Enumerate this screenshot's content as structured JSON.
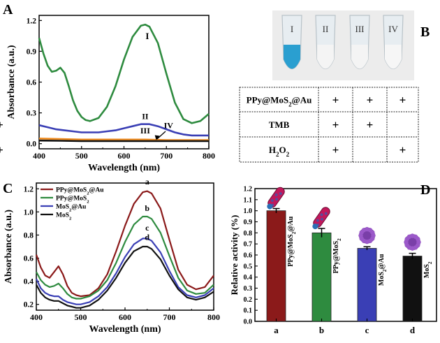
{
  "panel_letters": {
    "A": "A",
    "B": "B",
    "C": "C",
    "D": "D"
  },
  "colors": {
    "green": "#2e8b3f",
    "blue": "#3a3fb5",
    "orange": "#f08a1c",
    "black": "#111111",
    "darkred": "#8b1a1a",
    "tube_blue": "#2a9fd0"
  },
  "panelB": {
    "tube_labels": [
      "I",
      "II",
      "III",
      "IV"
    ],
    "table": {
      "rows": [
        {
          "label_main": "PPy@MoS",
          "label_sub": "2",
          "label_tail": "@Au",
          "marks": [
            "+",
            "+",
            "+",
            ""
          ]
        },
        {
          "label_main": "TMB",
          "label_sub": "",
          "label_tail": "",
          "marks": [
            "+",
            "+",
            "",
            "+"
          ]
        },
        {
          "label_main": "H",
          "label_sub": "2",
          "label_tail": "O",
          "label_sub2": "2",
          "marks": [
            "+",
            "",
            "+",
            "+"
          ]
        }
      ]
    }
  },
  "panelD_bar_labels": [
    {
      "main": "PPy@MoS",
      "sub": "2",
      "tail": "@Au"
    },
    {
      "main": "PPy@MoS",
      "sub": "2",
      "tail": ""
    },
    {
      "main": "MoS",
      "sub": "2",
      "tail": "@Au"
    },
    {
      "main": "MoS",
      "sub": "2",
      "tail": ""
    }
  ],
  "chart_data": [
    {
      "panel": "A",
      "type": "line",
      "xlabel": "Wavelength (nm)",
      "ylabel": "Absorbance (a.u.)",
      "xlim": [
        400,
        800
      ],
      "ylim": [
        -0.05,
        1.25
      ],
      "xticks": [
        400,
        500,
        600,
        700,
        800
      ],
      "yticks": [
        0.0,
        0.3,
        0.6,
        0.9,
        1.2
      ],
      "ytick_labels": [
        "0.0",
        "0.3",
        "0.6",
        "0.9",
        "1.2"
      ],
      "annotations": [
        "I",
        "II",
        "III",
        "IV"
      ],
      "series": [
        {
          "label": "I",
          "color": "#2e8b3f",
          "x": [
            400,
            410,
            420,
            430,
            440,
            450,
            460,
            470,
            480,
            490,
            500,
            510,
            520,
            540,
            560,
            580,
            600,
            620,
            640,
            650,
            660,
            680,
            700,
            720,
            740,
            760,
            780,
            800
          ],
          "y": [
            1.03,
            0.88,
            0.76,
            0.7,
            0.71,
            0.74,
            0.69,
            0.56,
            0.42,
            0.32,
            0.26,
            0.23,
            0.22,
            0.25,
            0.36,
            0.56,
            0.82,
            1.04,
            1.15,
            1.16,
            1.14,
            0.98,
            0.68,
            0.4,
            0.24,
            0.2,
            0.22,
            0.29
          ]
        },
        {
          "label": "II",
          "color": "#3a3fb5",
          "x": [
            400,
            420,
            440,
            460,
            480,
            500,
            520,
            540,
            560,
            580,
            600,
            620,
            640,
            650,
            660,
            680,
            700,
            720,
            740,
            760,
            780,
            800
          ],
          "y": [
            0.18,
            0.16,
            0.14,
            0.13,
            0.12,
            0.11,
            0.11,
            0.11,
            0.12,
            0.13,
            0.15,
            0.17,
            0.19,
            0.19,
            0.19,
            0.17,
            0.14,
            0.11,
            0.09,
            0.08,
            0.08,
            0.08
          ]
        },
        {
          "label": "III",
          "color": "#f08a1c",
          "x": [
            400,
            450,
            500,
            550,
            600,
            650,
            700,
            750,
            800
          ],
          "y": [
            0.05,
            0.045,
            0.04,
            0.04,
            0.04,
            0.04,
            0.035,
            0.035,
            0.035
          ]
        },
        {
          "label": "IV",
          "color": "#111111",
          "x": [
            400,
            450,
            500,
            550,
            600,
            650,
            700,
            750,
            800
          ],
          "y": [
            0.03,
            0.028,
            0.025,
            0.025,
            0.025,
            0.025,
            0.025,
            0.025,
            0.025
          ]
        }
      ]
    },
    {
      "panel": "C",
      "type": "line",
      "xlabel": "Wavelength (nm)",
      "ylabel": "Absorbance (a.u.)",
      "xlim": [
        400,
        800
      ],
      "ylim": [
        0.15,
        1.25
      ],
      "xticks": [
        400,
        500,
        600,
        700,
        800
      ],
      "yticks": [
        0.2,
        0.4,
        0.6,
        0.8,
        1.0,
        1.2
      ],
      "ytick_labels": [
        "0.2",
        "0.4",
        "0.6",
        "0.8",
        "1.0",
        "1.2"
      ],
      "annotations": [
        "a",
        "b",
        "c",
        "d"
      ],
      "series": [
        {
          "name_main": "PPy@MoS",
          "name_sub": "2",
          "name_tail": "@Au",
          "color": "#8b1a1a",
          "x": [
            400,
            410,
            420,
            430,
            440,
            450,
            460,
            470,
            480,
            490,
            500,
            520,
            540,
            560,
            580,
            600,
            620,
            640,
            650,
            660,
            680,
            700,
            720,
            740,
            760,
            780,
            800
          ],
          "y": [
            0.63,
            0.52,
            0.45,
            0.43,
            0.48,
            0.53,
            0.46,
            0.36,
            0.3,
            0.28,
            0.27,
            0.28,
            0.34,
            0.46,
            0.66,
            0.88,
            1.07,
            1.17,
            1.18,
            1.16,
            1.03,
            0.76,
            0.5,
            0.37,
            0.33,
            0.35,
            0.45
          ]
        },
        {
          "name_main": "PPy@MoS",
          "name_sub": "2",
          "name_tail": "",
          "color": "#2e8b3f",
          "x": [
            400,
            410,
            420,
            430,
            440,
            450,
            460,
            470,
            480,
            490,
            500,
            520,
            540,
            560,
            580,
            600,
            620,
            640,
            650,
            660,
            680,
            700,
            720,
            740,
            760,
            780,
            800
          ],
          "y": [
            0.48,
            0.41,
            0.37,
            0.35,
            0.36,
            0.38,
            0.34,
            0.29,
            0.26,
            0.25,
            0.25,
            0.27,
            0.32,
            0.41,
            0.56,
            0.74,
            0.89,
            0.96,
            0.96,
            0.94,
            0.82,
            0.62,
            0.43,
            0.32,
            0.29,
            0.3,
            0.37
          ]
        },
        {
          "name_main": "MoS",
          "name_sub": "2",
          "name_tail": "@Au",
          "color": "#3a3fb5",
          "x": [
            400,
            410,
            420,
            430,
            440,
            450,
            460,
            470,
            480,
            490,
            500,
            520,
            540,
            560,
            580,
            600,
            620,
            640,
            650,
            660,
            680,
            700,
            720,
            740,
            760,
            780,
            800
          ],
          "y": [
            0.42,
            0.34,
            0.3,
            0.28,
            0.27,
            0.27,
            0.24,
            0.22,
            0.21,
            0.2,
            0.2,
            0.22,
            0.27,
            0.35,
            0.47,
            0.61,
            0.72,
            0.77,
            0.77,
            0.75,
            0.65,
            0.49,
            0.35,
            0.28,
            0.26,
            0.28,
            0.34
          ]
        },
        {
          "name_main": "MoS",
          "name_sub": "2",
          "name_tail": "",
          "color": "#111111",
          "x": [
            400,
            410,
            420,
            430,
            440,
            450,
            460,
            470,
            480,
            490,
            500,
            520,
            540,
            560,
            580,
            600,
            620,
            640,
            650,
            660,
            680,
            700,
            720,
            740,
            760,
            780,
            800
          ],
          "y": [
            0.37,
            0.3,
            0.26,
            0.24,
            0.23,
            0.23,
            0.21,
            0.19,
            0.18,
            0.17,
            0.17,
            0.19,
            0.24,
            0.32,
            0.43,
            0.56,
            0.66,
            0.7,
            0.7,
            0.68,
            0.59,
            0.45,
            0.33,
            0.26,
            0.24,
            0.26,
            0.31
          ]
        }
      ]
    },
    {
      "panel": "D",
      "type": "bar",
      "ylabel": "Relative activity (%)",
      "ylim": [
        0.0,
        1.2
      ],
      "yticks": [
        0.0,
        0.1,
        0.2,
        0.3,
        0.4,
        0.5,
        0.6,
        0.7,
        0.8,
        0.9,
        1.0,
        1.1,
        1.2
      ],
      "ytick_labels": [
        "0.0",
        "0.1",
        "0.2",
        "0.3",
        "0.4",
        "0.5",
        "0.6",
        "0.7",
        "0.8",
        "0.9",
        "1.0",
        "1.1",
        "1.2"
      ],
      "categories": [
        "a",
        "b",
        "c",
        "d"
      ],
      "values": [
        1.0,
        0.8,
        0.66,
        0.59
      ],
      "errors": [
        0.02,
        0.04,
        0.015,
        0.025
      ],
      "colors": [
        "#8b1a1a",
        "#2e8b3f",
        "#3a3fb5",
        "#111111"
      ]
    }
  ]
}
